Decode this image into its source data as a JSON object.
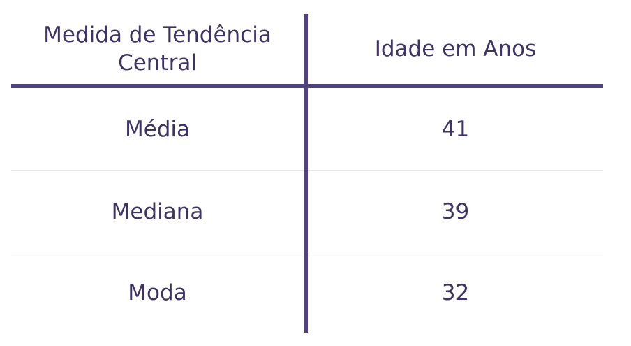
{
  "table": {
    "headers": [
      "Medida de Tendência\nCentral",
      "Idade em Anos"
    ],
    "rows": [
      {
        "measure": "Média",
        "value": "41"
      },
      {
        "measure": "Mediana",
        "value": "39"
      },
      {
        "measure": "Moda",
        "value": "32"
      }
    ]
  },
  "colors": {
    "text": "#3f3461",
    "rule": "#50437c",
    "row_divider": "#e6e6ea"
  }
}
